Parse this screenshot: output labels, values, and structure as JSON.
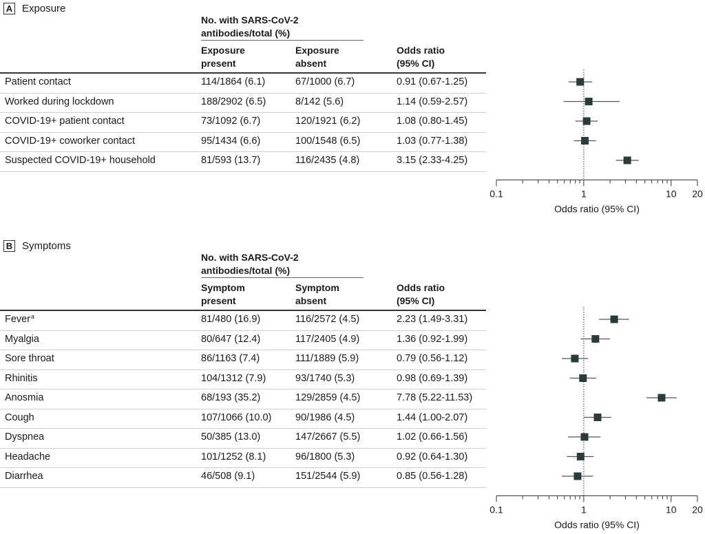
{
  "chart_data": [
    {
      "type": "forest",
      "panel": "A",
      "title": "Exposure",
      "group_header": "No. with SARS-CoV-2 antibodies/total (%)",
      "columns": [
        "Exposure present",
        "Exposure absent",
        "Odds ratio (95% CI)"
      ],
      "xlabel": "Odds ratio (95% CI)",
      "xscale": "log",
      "xlim": [
        0.1,
        20
      ],
      "xticks": [
        "0.1",
        "1",
        "10",
        "20"
      ],
      "reference_line": 1,
      "rows": [
        {
          "label": "Patient contact",
          "present": "114/1864 (6.1)",
          "absent": "67/1000 (6.7)",
          "or_text": "0.91 (0.67-1.25)",
          "or": 0.91,
          "lo": 0.67,
          "hi": 1.25
        },
        {
          "label": "Worked during lockdown",
          "present": "188/2902 (6.5)",
          "absent": "8/142 (5.6)",
          "or_text": "1.14 (0.59-2.57)",
          "or": 1.14,
          "lo": 0.59,
          "hi": 2.57
        },
        {
          "label": "COVID-19+ patient contact",
          "present": "73/1092 (6.7)",
          "absent": "120/1921 (6.2)",
          "or_text": "1.08 (0.80-1.45)",
          "or": 1.08,
          "lo": 0.8,
          "hi": 1.45
        },
        {
          "label": "COVID-19+ coworker contact",
          "present": "95/1434 (6.6)",
          "absent": "100/1548 (6.5)",
          "or_text": "1.03 (0.77-1.38)",
          "or": 1.03,
          "lo": 0.77,
          "hi": 1.38
        },
        {
          "label": "Suspected COVID-19+ household",
          "present": "81/593 (13.7)",
          "absent": "116/2435 (4.8)",
          "or_text": "3.15 (2.33-4.25)",
          "or": 3.15,
          "lo": 2.33,
          "hi": 4.25
        }
      ]
    },
    {
      "type": "forest",
      "panel": "B",
      "title": "Symptoms",
      "group_header": "No. with SARS-CoV-2 antibodies/total (%)",
      "columns": [
        "Symptom present",
        "Symptom absent",
        "Odds ratio (95% CI)"
      ],
      "xlabel": "Odds ratio (95% CI)",
      "xscale": "log",
      "xlim": [
        0.1,
        20
      ],
      "xticks": [
        "0.1",
        "1",
        "10",
        "20"
      ],
      "reference_line": 1,
      "rows": [
        {
          "label": "Fever",
          "sup": "a",
          "present": "81/480 (16.9)",
          "absent": "116/2572 (4.5)",
          "or_text": "2.23 (1.49-3.31)",
          "or": 2.23,
          "lo": 1.49,
          "hi": 3.31
        },
        {
          "label": "Myalgia",
          "present": "80/647 (12.4)",
          "absent": "117/2405 (4.9)",
          "or_text": "1.36 (0.92-1.99)",
          "or": 1.36,
          "lo": 0.92,
          "hi": 1.99
        },
        {
          "label": "Sore throat",
          "present": "86/1163 (7.4)",
          "absent": "111/1889 (5.9)",
          "or_text": "0.79 (0.56-1.12)",
          "or": 0.79,
          "lo": 0.56,
          "hi": 1.12
        },
        {
          "label": "Rhinitis",
          "present": "104/1312 (7.9)",
          "absent": "93/1740 (5.3)",
          "or_text": "0.98 (0.69-1.39)",
          "or": 0.98,
          "lo": 0.69,
          "hi": 1.39
        },
        {
          "label": "Anosmia",
          "present": "68/193 (35.2)",
          "absent": "129/2859 (4.5)",
          "or_text": "7.78 (5.22-11.53)",
          "or": 7.78,
          "lo": 5.22,
          "hi": 11.53
        },
        {
          "label": "Cough",
          "present": "107/1066 (10.0)",
          "absent": "90/1986 (4.5)",
          "or_text": "1.44 (1.00-2.07)",
          "or": 1.44,
          "lo": 1.0,
          "hi": 2.07
        },
        {
          "label": "Dyspnea",
          "present": "50/385 (13.0)",
          "absent": "147/2667 (5.5)",
          "or_text": "1.02 (0.66-1.56)",
          "or": 1.02,
          "lo": 0.66,
          "hi": 1.56
        },
        {
          "label": "Headache",
          "present": "101/1252 (8.1)",
          "absent": "96/1800 (5.3)",
          "or_text": "0.92 (0.64-1.30)",
          "or": 0.92,
          "lo": 0.64,
          "hi": 1.3
        },
        {
          "label": "Diarrhea",
          "present": "46/508 (9.1)",
          "absent": "151/2544 (5.9)",
          "or_text": "0.85 (0.56-1.28)",
          "or": 0.85,
          "lo": 0.56,
          "hi": 1.28
        }
      ]
    }
  ],
  "colors": {
    "marker": "#2b3b3b",
    "ci_line": "#555555",
    "text": "#1a1a1a"
  }
}
